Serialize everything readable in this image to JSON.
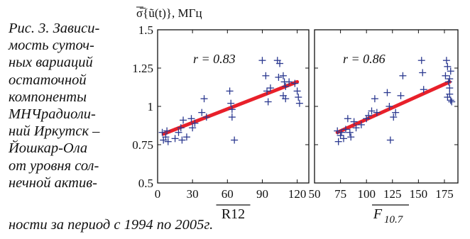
{
  "caption": {
    "lines": [
      "Рис. 3. Зависи-",
      "мость суточ-",
      "ных вариаций",
      "остаточной",
      "компоненты",
      "МНЧрадиоли-",
      "ний Иркутск –",
      "Йошкар-Ола",
      "от уровня сол-",
      "нечной актив-"
    ],
    "tail": "ности за период с 1994 по 2005г."
  },
  "colors": {
    "markers": "#2b3990",
    "trend": "#e8202a",
    "axes": "#111111"
  },
  "chart_data": [
    {
      "type": "scatter",
      "ylabel": "σ̅{ũ(t)}, МГц",
      "xlabel": "R12",
      "xlabel_overline": true,
      "annotation": "r = 0.83",
      "xlim": [
        0,
        130
      ],
      "ylim": [
        0.5,
        1.5
      ],
      "xticks": [
        0,
        30,
        60,
        90,
        120
      ],
      "yticks": [
        0.5,
        0.75,
        1,
        1.25,
        1.5
      ],
      "ytick_labels": [
        "0.5",
        "0.75",
        "1",
        "1.25",
        "1.5"
      ],
      "marker": "plus",
      "points": [
        [
          4,
          0.83
        ],
        [
          5,
          0.78
        ],
        [
          7,
          0.8
        ],
        [
          8,
          0.84
        ],
        [
          9,
          0.77
        ],
        [
          15,
          0.79
        ],
        [
          18,
          0.83
        ],
        [
          20,
          0.86
        ],
        [
          21,
          0.78
        ],
        [
          22,
          0.91
        ],
        [
          25,
          0.8
        ],
        [
          29,
          0.92
        ],
        [
          30,
          0.86
        ],
        [
          32,
          0.89
        ],
        [
          38,
          0.96
        ],
        [
          40,
          1.05
        ],
        [
          42,
          0.93
        ],
        [
          62,
          1.1
        ],
        [
          63,
          1.02
        ],
        [
          64,
          0.93
        ],
        [
          64,
          0.98
        ],
        [
          66,
          0.78
        ],
        [
          90,
          1.3
        ],
        [
          93,
          1.2
        ],
        [
          94,
          1.1
        ],
        [
          95,
          1.03
        ],
        [
          97,
          1.12
        ],
        [
          103,
          1.3
        ],
        [
          104,
          1.19
        ],
        [
          105,
          1.28
        ],
        [
          108,
          1.2
        ],
        [
          108,
          1.07
        ],
        [
          109,
          1.16
        ],
        [
          110,
          1.05
        ],
        [
          113,
          1.16
        ],
        [
          118,
          1.15
        ],
        [
          120,
          1.1
        ],
        [
          121,
          1.06
        ],
        [
          122,
          1.02
        ],
        [
          110,
          1.13
        ]
      ],
      "trend": [
        [
          5,
          0.82
        ],
        [
          120,
          1.16
        ]
      ]
    },
    {
      "type": "scatter",
      "xlabel": "F10.7",
      "xlabel_main": "F",
      "xlabel_sub": "10.7",
      "xlabel_overline": true,
      "annotation": "r = 0.86",
      "xlim": [
        50,
        188
      ],
      "ylim": [
        0.5,
        1.5
      ],
      "xticks": [
        50,
        75,
        100,
        125,
        150,
        175
      ],
      "yticks": [
        0.5,
        0.75,
        1,
        1.25,
        1.5
      ],
      "marker": "plus",
      "points": [
        [
          72,
          0.84
        ],
        [
          73,
          0.77
        ],
        [
          75,
          0.81
        ],
        [
          76,
          0.83
        ],
        [
          78,
          0.79
        ],
        [
          80,
          0.85
        ],
        [
          82,
          0.92
        ],
        [
          84,
          0.83
        ],
        [
          85,
          0.8
        ],
        [
          88,
          0.9
        ],
        [
          90,
          0.86
        ],
        [
          95,
          0.88
        ],
        [
          100,
          0.92
        ],
        [
          102,
          0.94
        ],
        [
          105,
          0.97
        ],
        [
          108,
          1.05
        ],
        [
          110,
          0.96
        ],
        [
          120,
          1.09
        ],
        [
          122,
          1.0
        ],
        [
          123,
          0.78
        ],
        [
          126,
          0.93
        ],
        [
          128,
          0.96
        ],
        [
          133,
          1.07
        ],
        [
          135,
          1.2
        ],
        [
          153,
          1.3
        ],
        [
          154,
          1.22
        ],
        [
          155,
          1.11
        ],
        [
          176,
          1.2
        ],
        [
          177,
          1.3
        ],
        [
          178,
          1.26
        ],
        [
          179,
          1.16
        ],
        [
          180,
          1.12
        ],
        [
          180,
          1.08
        ],
        [
          181,
          1.04
        ],
        [
          182,
          1.03
        ],
        [
          180,
          1.18
        ],
        [
          181,
          1.23
        ],
        [
          178,
          1.06
        ]
      ],
      "trend": [
        [
          72,
          0.83
        ],
        [
          180,
          1.16
        ]
      ]
    }
  ]
}
